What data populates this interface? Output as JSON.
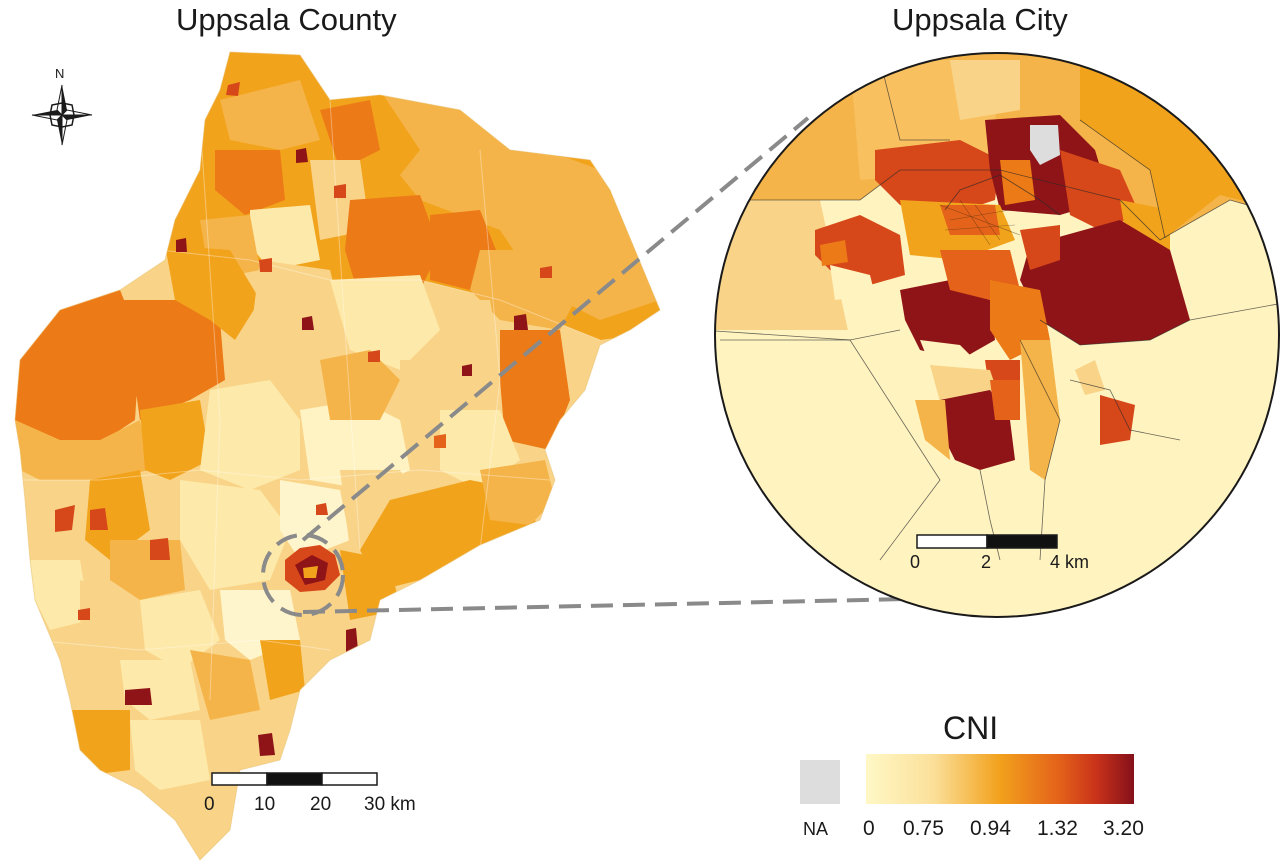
{
  "titles": {
    "county": "Uppsala County",
    "city": "Uppsala City"
  },
  "north_arrow": {
    "label": "N"
  },
  "county_scale": {
    "ticks": [
      "0",
      "10",
      "20",
      "30 km"
    ]
  },
  "city_scale": {
    "ticks": [
      "0",
      "2",
      "4 km"
    ]
  },
  "legend": {
    "title": "CNI",
    "na_label": "NA",
    "na_color": "#dddddd",
    "breaks": [
      "0",
      "0.75",
      "0.94",
      "1.32",
      "3.20"
    ],
    "colors": [
      "#fff7c2",
      "#fbe3a0",
      "#f2a11c",
      "#e4621a",
      "#c8321a",
      "#8a1218"
    ]
  },
  "palette": {
    "pale": "#fde9a9",
    "light": "#f9d488",
    "mid": "#f5b449",
    "orange": "#f2a31c",
    "dark_orange": "#ec7a16",
    "red": "#d6471a",
    "dark_red": "#8e1417",
    "na": "#dddddd"
  }
}
